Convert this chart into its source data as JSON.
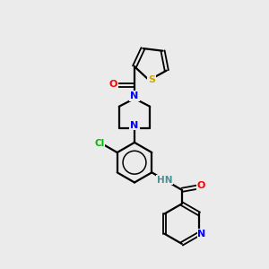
{
  "background_color": "#ebebeb",
  "bond_color": "#000000",
  "atom_colors": {
    "N": "#0000ff",
    "O": "#ff0000",
    "S": "#ccaa00",
    "Cl": "#00bb00",
    "C": "#000000",
    "H": "#4a9090"
  },
  "figsize": [
    3.0,
    3.0
  ],
  "dpi": 100
}
